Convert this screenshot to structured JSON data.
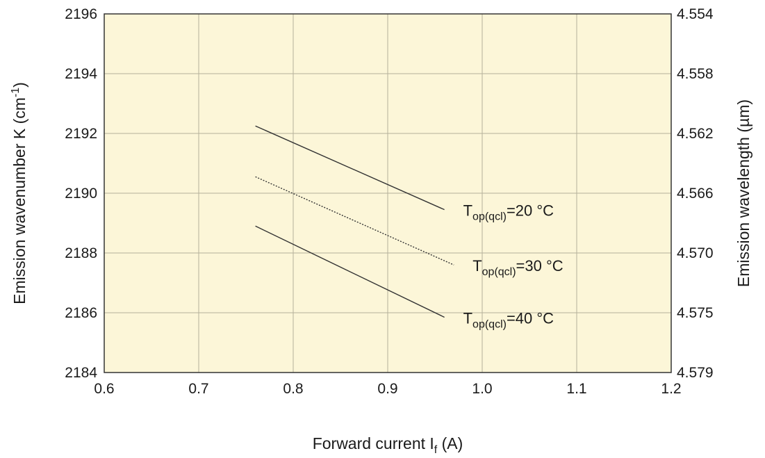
{
  "chart_data": {
    "type": "line",
    "xlabel": {
      "main": "Forward current I",
      "sub": "f",
      "tail": " (A)"
    },
    "ylabel": {
      "main": "Emission wavenumber K (cm",
      "sup": "-1",
      "tail": ")"
    },
    "y2label": "Emission wavelength (µm)",
    "xlim": [
      0.6,
      1.2
    ],
    "ylim": [
      2184,
      2196
    ],
    "x_ticks": [
      "0.6",
      "0.7",
      "0.8",
      "0.9",
      "1.0",
      "1.1",
      "1.2"
    ],
    "y_ticks": [
      "2184",
      "2186",
      "2188",
      "2190",
      "2192",
      "2194",
      "2196"
    ],
    "y2_ticks": [
      "4.579",
      "4.575",
      "4.570",
      "4.566",
      "4.562",
      "4.558",
      "4.554"
    ],
    "grid": true,
    "plot_background": "#fcf6d8",
    "series": [
      {
        "label": {
          "main": "T",
          "sub": "op(qcl)",
          "tail": "=20 °C"
        },
        "style": "solid",
        "x": [
          0.76,
          0.96
        ],
        "y": [
          2192.25,
          2189.45
        ]
      },
      {
        "label": {
          "main": "T",
          "sub": "op(qcl)",
          "tail": "=30 °C"
        },
        "style": "dotted",
        "x": [
          0.76,
          0.97
        ],
        "y": [
          2190.55,
          2187.6
        ]
      },
      {
        "label": {
          "main": "T",
          "sub": "op(qcl)",
          "tail": "=40 °C"
        },
        "style": "solid",
        "x": [
          0.76,
          0.96
        ],
        "y": [
          2188.9,
          2185.85
        ]
      }
    ]
  }
}
